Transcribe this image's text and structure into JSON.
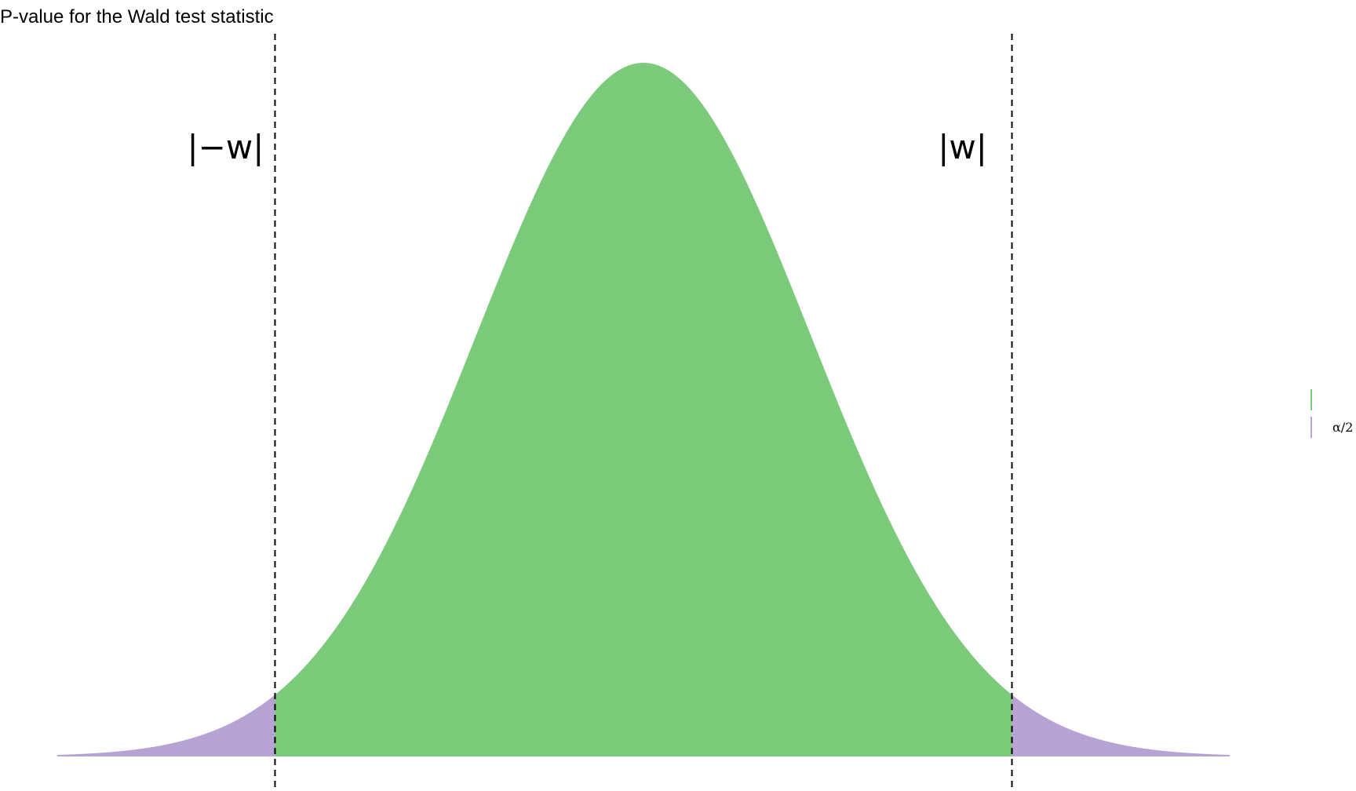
{
  "chart_data": {
    "type": "area",
    "title": "P-value for the Wald test statistic",
    "xlabel": "",
    "ylabel": "",
    "distribution": "standard normal density",
    "xlim": [
      -3.5,
      3.5
    ],
    "ylim": [
      0,
      0.41
    ],
    "critical_values": [
      -2.2,
      2.2
    ],
    "annotations": [
      {
        "label": "|−w|",
        "at_x": -2.2
      },
      {
        "label": "|w|",
        "at_x": 2.2
      }
    ],
    "series": [
      {
        "name": "",
        "region": "center",
        "x_range": [
          -2.2,
          2.2
        ],
        "color": "#7dcc7d"
      },
      {
        "name": "α/2",
        "region": "tails",
        "x_range": [
          [
            -3.5,
            -2.2
          ],
          [
            2.2,
            3.5
          ]
        ],
        "color": "#b9a4d6"
      }
    ],
    "grid": false,
    "legend_position": "right",
    "legend": [
      {
        "label": "",
        "color": "#7dcc7d"
      },
      {
        "label": "α/2",
        "color": "#b9a4d6"
      }
    ]
  }
}
